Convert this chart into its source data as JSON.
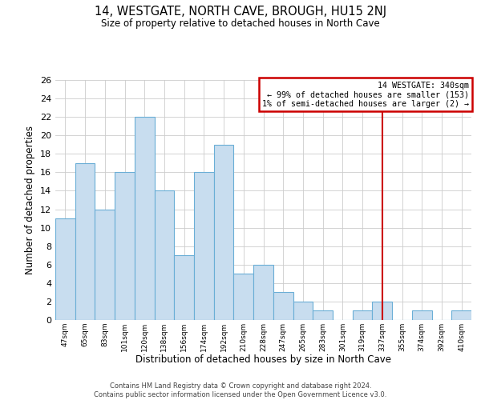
{
  "title": "14, WESTGATE, NORTH CAVE, BROUGH, HU15 2NJ",
  "subtitle": "Size of property relative to detached houses in North Cave",
  "xlabel": "Distribution of detached houses by size in North Cave",
  "ylabel": "Number of detached properties",
  "categories": [
    "47sqm",
    "65sqm",
    "83sqm",
    "101sqm",
    "120sqm",
    "138sqm",
    "156sqm",
    "174sqm",
    "192sqm",
    "210sqm",
    "228sqm",
    "247sqm",
    "265sqm",
    "283sqm",
    "301sqm",
    "319sqm",
    "337sqm",
    "355sqm",
    "374sqm",
    "392sqm",
    "410sqm"
  ],
  "values": [
    11,
    17,
    12,
    16,
    22,
    14,
    7,
    16,
    19,
    5,
    6,
    3,
    2,
    1,
    0,
    1,
    2,
    0,
    1,
    0,
    1
  ],
  "bar_color": "#c8ddef",
  "bar_edge_color": "#6aaed6",
  "vline_x": 16,
  "vline_color": "#cc0000",
  "annotation_text": "14 WESTGATE: 340sqm\n← 99% of detached houses are smaller (153)\n1% of semi-detached houses are larger (2) →",
  "annotation_box_edge": "#cc0000",
  "ylim": [
    0,
    26
  ],
  "yticks": [
    0,
    2,
    4,
    6,
    8,
    10,
    12,
    14,
    16,
    18,
    20,
    22,
    24,
    26
  ],
  "footer_line1": "Contains HM Land Registry data © Crown copyright and database right 2024.",
  "footer_line2": "Contains public sector information licensed under the Open Government Licence v3.0.",
  "bg_color": "#ffffff",
  "grid_color": "#cccccc"
}
